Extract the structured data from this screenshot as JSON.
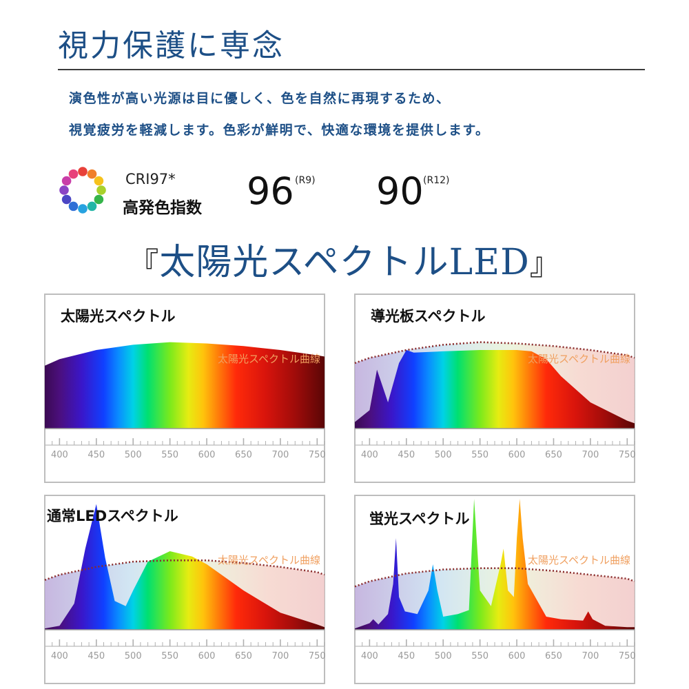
{
  "header": {
    "title": "視力保護に専念",
    "desc_line1": "演色性が高い光源は目に優しく、色を自然に再現するため、",
    "desc_line2": "視覚疲労を軽減します。色彩が鮮明で、快適な環境を提供します。"
  },
  "cri": {
    "label": "CRI97*",
    "sub_label": "高発色指数",
    "r9_value": "96",
    "r9_label": "(R9)",
    "r12_value": "90",
    "r12_label": "(R12)"
  },
  "headline": {
    "open": "『",
    "text": "太陽光スペクトルLED",
    "close": "』"
  },
  "colors": {
    "brand_blue": "#1d4f86",
    "curve_label": "#f0a060",
    "reference_curve": "#8a2c2c"
  },
  "chart_data": [
    {
      "type": "area",
      "title": "太陽光スペクトル",
      "reference_label": "太陽光スペクトル曲線",
      "x_ticks": [
        400,
        450,
        500,
        550,
        600,
        650,
        700,
        750
      ],
      "xlim": [
        380,
        760
      ],
      "ylim": [
        0,
        1
      ],
      "show_reference": false,
      "series": [
        {
          "x": [
            380,
            400,
            450,
            500,
            550,
            600,
            650,
            700,
            750,
            760
          ],
          "values": [
            0.48,
            0.53,
            0.6,
            0.64,
            0.66,
            0.65,
            0.63,
            0.6,
            0.56,
            0.55
          ]
        }
      ]
    },
    {
      "type": "area",
      "title": "導光板スペクトル",
      "reference_label": "太陽光スペクトル曲線",
      "x_ticks": [
        400,
        450,
        500,
        550,
        600,
        650,
        700,
        750
      ],
      "xlim": [
        380,
        760
      ],
      "ylim": [
        0,
        1
      ],
      "show_reference": true,
      "reference": {
        "x": [
          380,
          400,
          450,
          500,
          550,
          600,
          650,
          700,
          750,
          760
        ],
        "values": [
          0.5,
          0.54,
          0.6,
          0.64,
          0.66,
          0.65,
          0.63,
          0.6,
          0.56,
          0.54
        ]
      },
      "series": [
        {
          "x": [
            380,
            400,
            410,
            425,
            440,
            450,
            460,
            500,
            550,
            600,
            620,
            640,
            660,
            700,
            750,
            760
          ],
          "values": [
            0.05,
            0.14,
            0.45,
            0.2,
            0.5,
            0.6,
            0.58,
            0.59,
            0.6,
            0.6,
            0.59,
            0.53,
            0.4,
            0.2,
            0.06,
            0.04
          ]
        }
      ]
    },
    {
      "type": "area",
      "title": "通常LEDスペクトル",
      "reference_label": "太陽光スペクトル曲線",
      "x_ticks": [
        400,
        450,
        500,
        550,
        600,
        650,
        700,
        750
      ],
      "xlim": [
        380,
        760
      ],
      "ylim": [
        0,
        1
      ],
      "show_reference": true,
      "reference": {
        "x": [
          380,
          400,
          450,
          500,
          550,
          600,
          650,
          700,
          750,
          760
        ],
        "values": [
          0.38,
          0.42,
          0.48,
          0.52,
          0.53,
          0.53,
          0.51,
          0.48,
          0.44,
          0.42
        ]
      },
      "series": [
        {
          "x": [
            380,
            400,
            420,
            435,
            450,
            462,
            475,
            490,
            500,
            520,
            550,
            580,
            600,
            650,
            700,
            750,
            760
          ],
          "values": [
            0.01,
            0.03,
            0.2,
            0.62,
            0.96,
            0.55,
            0.22,
            0.18,
            0.3,
            0.52,
            0.6,
            0.56,
            0.5,
            0.3,
            0.13,
            0.04,
            0.02
          ]
        }
      ]
    },
    {
      "type": "area",
      "title": "蛍光スペクトル",
      "reference_label": "太陽光スペクトル曲線",
      "x_ticks": [
        400,
        450,
        500,
        550,
        600,
        650,
        700,
        750
      ],
      "xlim": [
        380,
        760
      ],
      "ylim": [
        0,
        1
      ],
      "show_reference": true,
      "reference": {
        "x": [
          380,
          400,
          450,
          500,
          550,
          600,
          650,
          700,
          750,
          760
        ],
        "values": [
          0.33,
          0.37,
          0.43,
          0.46,
          0.47,
          0.47,
          0.45,
          0.42,
          0.39,
          0.37
        ]
      },
      "series": [
        {
          "x": [
            380,
            400,
            405,
            412,
            425,
            432,
            436,
            440,
            448,
            465,
            480,
            486,
            492,
            500,
            520,
            535,
            542,
            550,
            565,
            578,
            582,
            588,
            596,
            600,
            604,
            608,
            615,
            640,
            660,
            690,
            697,
            703,
            720,
            750,
            760
          ],
          "values": [
            0.01,
            0.05,
            0.08,
            0.04,
            0.12,
            0.35,
            0.7,
            0.25,
            0.14,
            0.12,
            0.3,
            0.5,
            0.3,
            0.1,
            0.12,
            0.15,
            1.0,
            0.3,
            0.18,
            0.5,
            0.62,
            0.3,
            0.25,
            0.7,
            1.0,
            0.7,
            0.35,
            0.1,
            0.08,
            0.07,
            0.14,
            0.08,
            0.03,
            0.02,
            0.02
          ]
        }
      ]
    }
  ]
}
